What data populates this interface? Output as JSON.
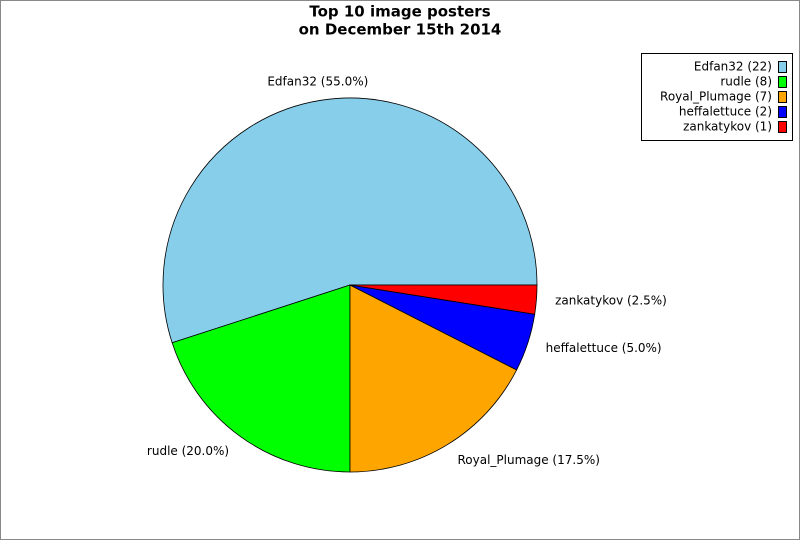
{
  "chart_data": {
    "type": "pie",
    "title": [
      "Top 10 image posters",
      "on December 15th 2014"
    ],
    "categories": [
      "Edfan32",
      "rudle",
      "Royal_Plumage",
      "heffalettuce",
      "zankatykov"
    ],
    "values": [
      22,
      8,
      7,
      2,
      1
    ],
    "value_labels": [
      "Edfan32 (22)",
      "rudle (8)",
      "Royal_Plumage (7)",
      "heffalettuce (2)",
      "zankatykov (1)"
    ],
    "percents": [
      55.0,
      20.0,
      17.5,
      5.0,
      2.5
    ],
    "percent_labels": [
      "Edfan32 (55.0%)",
      "rudle (20.0%)",
      "Royal_Plumage (17.5%)",
      "heffalettuce (5.0%)",
      "zankatykov (2.5%)"
    ],
    "colors": [
      "#87ceeb",
      "#00ff00",
      "#ffa500",
      "#0000ff",
      "#ff0000"
    ],
    "legend": "upper right"
  }
}
